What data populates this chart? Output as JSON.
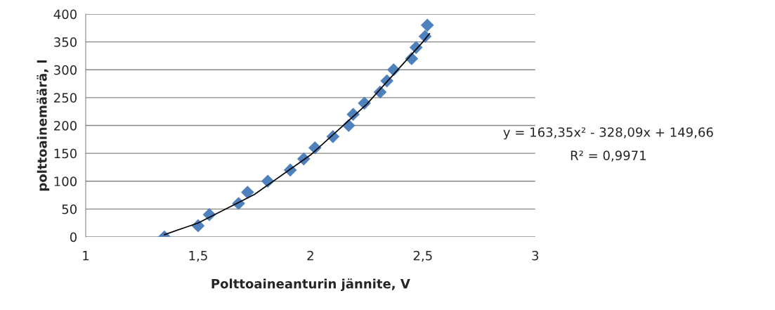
{
  "chart_data": {
    "type": "scatter",
    "xlabel": "Polttoaineanturin jännite, V",
    "ylabel": "polttoainemäärä, l",
    "xlim": [
      1,
      3
    ],
    "xticks": [
      1,
      {
        "value": 1.5,
        "label": "1,5"
      },
      2,
      {
        "value": 2.5,
        "label": "2,5"
      },
      3
    ],
    "ylim": [
      0,
      400
    ],
    "yticks": [
      0,
      50,
      100,
      150,
      200,
      250,
      300,
      350,
      400
    ],
    "grid": "y",
    "series": [
      {
        "marker": "diamond",
        "color": "#4f81bd",
        "x": [
          1.35,
          1.5,
          1.55,
          1.68,
          1.72,
          1.81,
          1.91,
          1.97,
          2.02,
          2.1,
          2.17,
          2.19,
          2.24,
          2.31,
          2.34,
          2.37,
          2.45,
          2.47,
          2.51,
          2.52
        ],
        "values": [
          0,
          20,
          40,
          60,
          80,
          100,
          120,
          140,
          160,
          180,
          200,
          220,
          240,
          260,
          280,
          300,
          320,
          340,
          360,
          380
        ]
      },
      {
        "type": "line",
        "color": "#000000",
        "x": [
          1.35,
          1.5,
          1.75,
          2.0,
          2.25,
          2.5,
          2.53
        ],
        "values": [
          4,
          25,
          76,
          147,
          238,
          350,
          365
        ]
      }
    ],
    "annotations": [
      "y = 163,35x² - 328,09x + 149,66",
      "R² = 0,9971"
    ]
  }
}
